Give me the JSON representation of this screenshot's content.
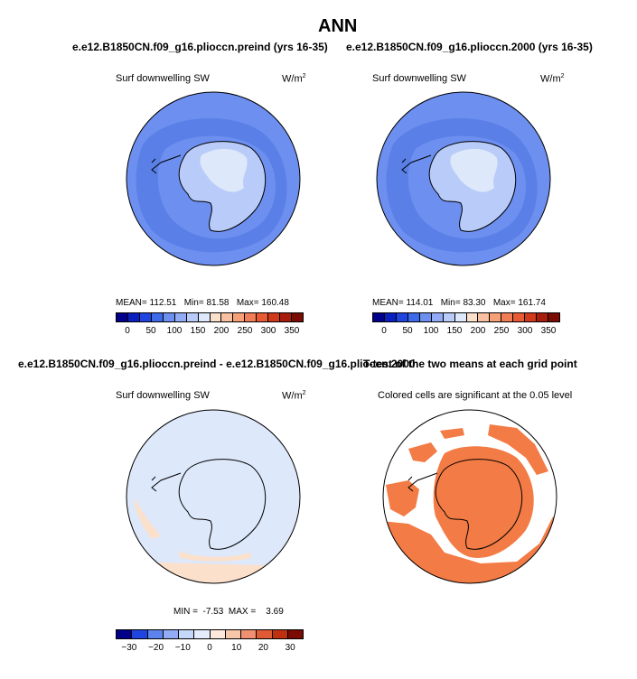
{
  "page_title": "ANN",
  "panels": {
    "top_left": {
      "case": "e.e12.B1850CN.f09_g16.plioccn.preind (yrs 16-35)",
      "variable": "Surf downwelling SW",
      "units": "W/m",
      "units_exp": "2",
      "stats": {
        "mean_label": "MEAN=",
        "mean": "112.51",
        "min_label": "Min=",
        "min": "81.58",
        "max_label": "Max=",
        "max": "160.48"
      },
      "colorbar_ticks": [
        "0",
        "50",
        "100",
        "150",
        "200",
        "250",
        "300",
        "350"
      ]
    },
    "top_right": {
      "case": "e.e12.B1850CN.f09_g16.plioccn.2000 (yrs 16-35)",
      "variable": "Surf downwelling SW",
      "units": "W/m",
      "units_exp": "2",
      "stats": {
        "mean_label": "MEAN=",
        "mean": "114.01",
        "min_label": "Min=",
        "min": "83.30",
        "max_label": "Max=",
        "max": "161.74"
      },
      "colorbar_ticks": [
        "0",
        "50",
        "100",
        "150",
        "200",
        "250",
        "300",
        "350"
      ]
    },
    "bottom_left": {
      "case": "e.e12.B1850CN.f09_g16.plioccn.preind - e.e12.B1850CN.f09_g16.plioccn.2000",
      "variable": "Surf downwelling SW",
      "units": "W/m",
      "units_exp": "2",
      "stats": {
        "min_label": "MIN =",
        "min": "-7.53",
        "max_label": "MAX =",
        "max": "3.69"
      },
      "colorbar_ticks": [
        "−30",
        "−20",
        "−10",
        "0",
        "10",
        "20",
        "30"
      ]
    },
    "bottom_right": {
      "case": "T-test of the two means at each grid point",
      "note": "Colored cells are significant at the 0.05 level"
    }
  },
  "colors": {
    "abs_scale": [
      "#00008b",
      "#0a1fbf",
      "#1f44e0",
      "#3d6ae8",
      "#6d8ff0",
      "#93abf4",
      "#b9cbf8",
      "#dde8fb",
      "#fbe0cc",
      "#f7c0a0",
      "#f6a078",
      "#f07d55",
      "#e85a33",
      "#d03a1a",
      "#a81c0c",
      "#7a0c04"
    ],
    "diff_scale": [
      "#00008b",
      "#1f44e0",
      "#5d84ee",
      "#93abf4",
      "#c6d8fa",
      "#e4edfc",
      "#fce8dc",
      "#f8c6a8",
      "#f09070",
      "#e05a33",
      "#c0300f",
      "#7a0c04"
    ],
    "ocean_outer": "#6d8ff0",
    "ocean_inner": "#5a80e8",
    "ice_main": "#b9cbf8",
    "ice_light": "#dde8fb",
    "diff_bg": "#dde8fb",
    "diff_pos": "#fbe0cc",
    "ttest_fill": "#f37b45"
  }
}
